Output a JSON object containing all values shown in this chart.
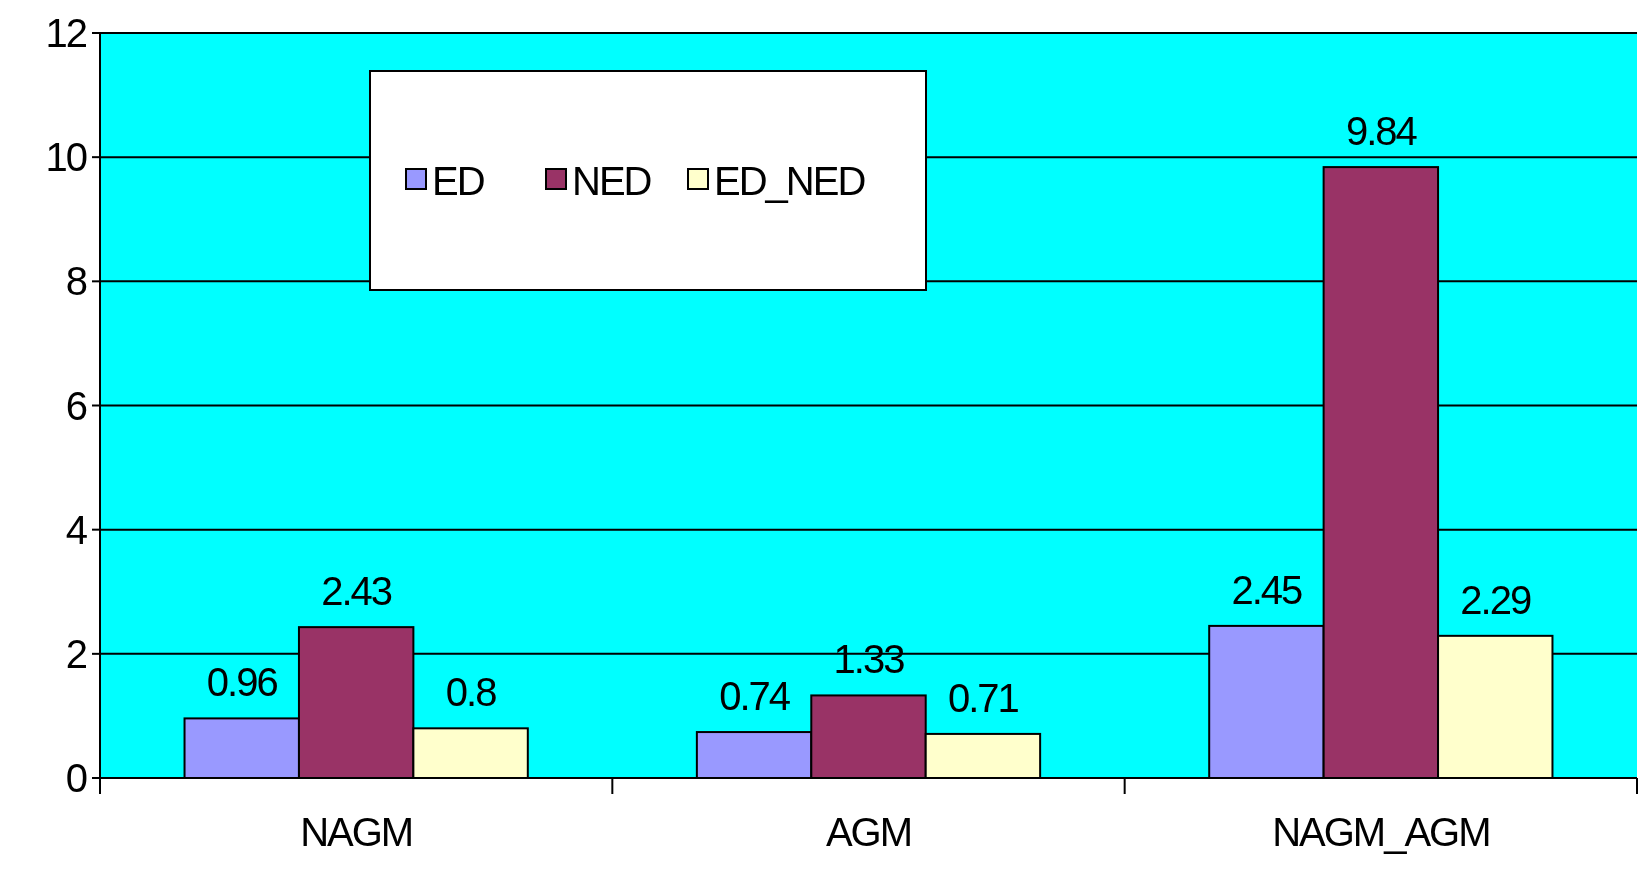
{
  "chart_data": {
    "type": "bar",
    "categories": [
      "NAGM",
      "AGM",
      "NAGM_AGM"
    ],
    "series": [
      {
        "name": "ED",
        "color": "#9999ff",
        "values": [
          0.96,
          0.74,
          2.45
        ]
      },
      {
        "name": "NED",
        "color": "#993366",
        "values": [
          2.43,
          1.33,
          9.84
        ]
      },
      {
        "name": "ED_NED",
        "color": "#ffffcc",
        "values": [
          0.8,
          0.71,
          2.29
        ]
      }
    ],
    "ylim": [
      0,
      12
    ],
    "yticks": [
      0,
      2,
      4,
      6,
      8,
      10,
      12
    ],
    "grid": "y",
    "legend": "top left",
    "data_labels": true
  }
}
